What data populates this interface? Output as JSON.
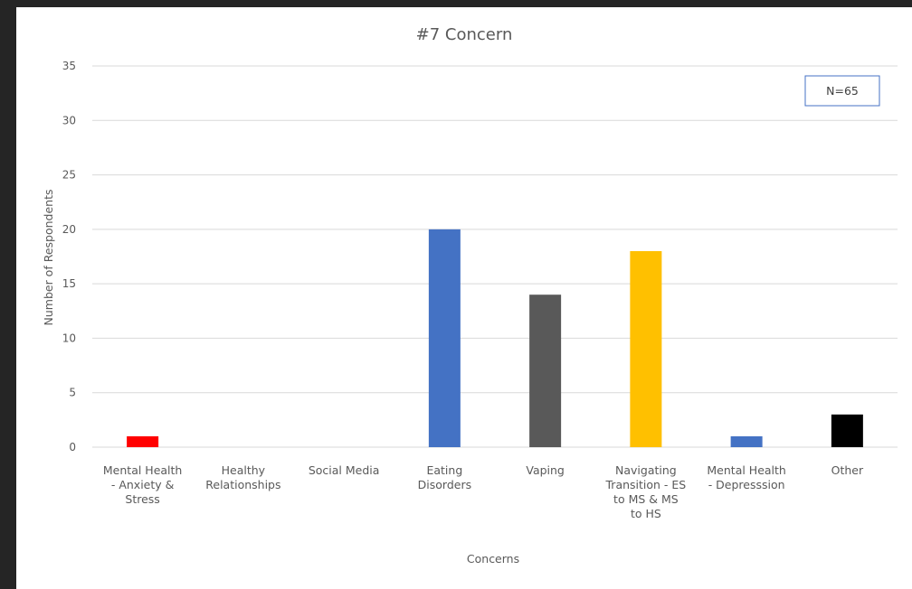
{
  "chart_data": {
    "type": "bar",
    "title": "#7 Concern",
    "xlabel": "Concerns",
    "ylabel": "Number of Respondents",
    "ylim": [
      0,
      35
    ],
    "yticks": [
      0,
      5,
      10,
      15,
      20,
      25,
      30,
      35
    ],
    "grid": true,
    "legend": "none",
    "annotation": "N=65",
    "categories": [
      [
        "Mental Health",
        "- Anxiety &",
        "Stress"
      ],
      [
        "Healthy",
        "Relationships"
      ],
      [
        "Social Media"
      ],
      [
        "Eating",
        "Disorders"
      ],
      [
        "Vaping"
      ],
      [
        "Navigating",
        "Transition - ES",
        "to MS & MS",
        "to HS"
      ],
      [
        "Mental Health",
        "- Depresssion"
      ],
      [
        "Other"
      ]
    ],
    "values": [
      1,
      0,
      0,
      20,
      14,
      18,
      1,
      3
    ],
    "colors": [
      "#ff0000",
      "#4472c4",
      "#4472c4",
      "#4472c4",
      "#595959",
      "#ffc000",
      "#4472c4",
      "#000000"
    ]
  }
}
